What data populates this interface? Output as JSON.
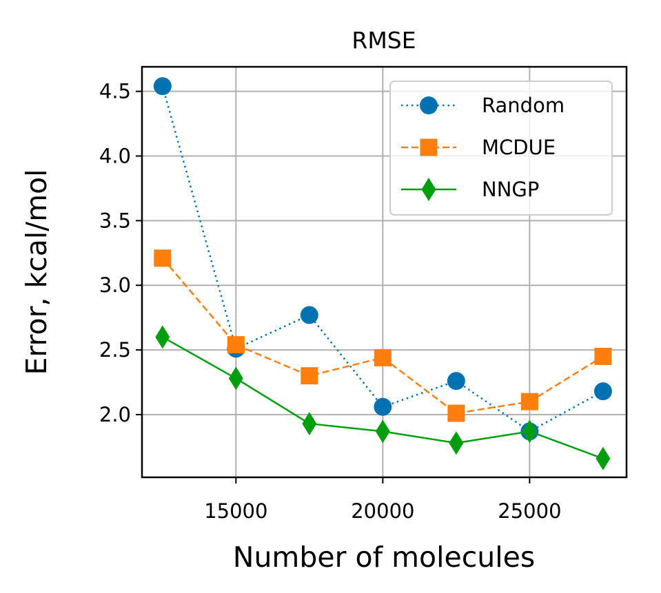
{
  "chart_data": {
    "type": "line",
    "title": "RMSE",
    "xlabel": "Number of molecules",
    "ylabel": "Error, kcal/mol",
    "xlim": [
      11800,
      28300
    ],
    "ylim": [
      1.515,
      4.69
    ],
    "xticks": [
      15000,
      20000,
      25000
    ],
    "xtick_labels": [
      "15000",
      "20000",
      "25000"
    ],
    "yticks": [
      2.0,
      2.5,
      3.0,
      3.5,
      4.0,
      4.5
    ],
    "ytick_labels": [
      "2.0",
      "2.5",
      "3.0",
      "3.5",
      "4.0",
      "4.5"
    ],
    "grid": true,
    "legend_position": "top-right",
    "x": [
      12500,
      15000,
      17500,
      20000,
      22500,
      25000,
      27500
    ],
    "series": [
      {
        "name": "Random",
        "color": "#0072b2",
        "line_style": "dotted",
        "marker": "circle",
        "values": [
          4.54,
          2.51,
          2.77,
          2.06,
          2.26,
          1.87,
          2.18
        ]
      },
      {
        "name": "MCDUE",
        "color": "#ff7f0e",
        "line_style": "dashed",
        "marker": "square",
        "values": [
          3.21,
          2.54,
          2.3,
          2.44,
          2.01,
          2.1,
          2.45
        ]
      },
      {
        "name": "NNGP",
        "color": "#009e0f",
        "line_style": "solid",
        "marker": "diamond",
        "values": [
          2.6,
          2.28,
          1.93,
          1.87,
          1.78,
          1.87,
          1.66
        ]
      }
    ]
  }
}
